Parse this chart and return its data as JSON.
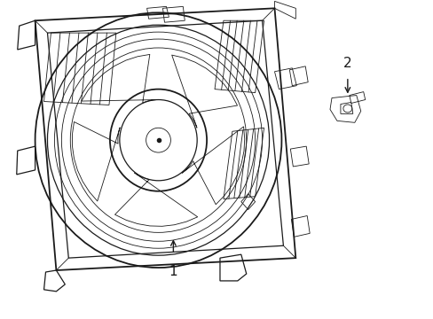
{
  "bg_color": "#ffffff",
  "line_color": "#1a1a1a",
  "lw_thick": 1.3,
  "lw_med": 0.9,
  "lw_thin": 0.6,
  "figsize": [
    4.89,
    3.6
  ],
  "dpi": 100
}
